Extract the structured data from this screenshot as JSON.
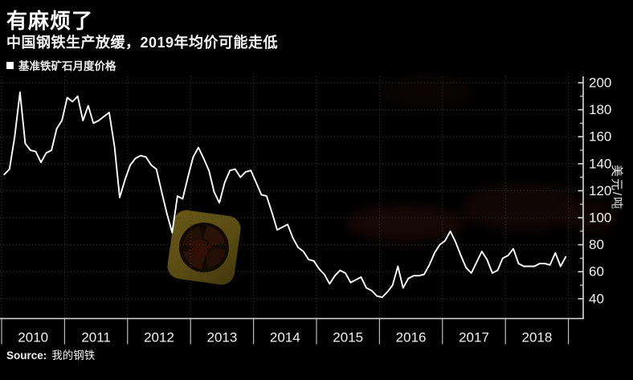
{
  "header": {
    "title": "有麻烦了",
    "subtitle": "中国钢铁生产放缓，2019年均价可能走低"
  },
  "legend": {
    "label": "基准铁矿石月度价格"
  },
  "source": {
    "prefix": "Source:",
    "name": "我的钢铁"
  },
  "colors": {
    "background": "#000000",
    "line": "#ffffff",
    "grid": "#3c3c3c",
    "axis": "#d9d9d9",
    "text": "#f2f2f2",
    "watermark_gold": "#6b5a16",
    "watermark_emblem": "#2e1409"
  },
  "chart_data": {
    "type": "line",
    "title": "有麻烦了",
    "subtitle": "中国钢铁生产放缓，2019年均价可能走低",
    "series_name": "基准铁矿石月度价格",
    "ylabel": "美元/吨",
    "xlabel": "",
    "grid": true,
    "legend_position": "top-left",
    "ylim": [
      40,
      200
    ],
    "y_ticks": [
      200,
      180,
      160,
      140,
      120,
      100,
      80,
      60,
      40
    ],
    "y_minor_step": 10,
    "x_tick_labels": [
      "2010",
      "2011",
      "2012",
      "2013",
      "2014",
      "2015",
      "2016",
      "2017",
      "2018"
    ],
    "start_year": 2010,
    "frequency": "monthly",
    "series": [
      {
        "name": "基准铁矿石月度价格",
        "values": [
          132,
          136,
          160,
          193,
          155,
          150,
          149,
          141,
          148,
          150,
          166,
          172,
          189,
          186,
          190,
          172,
          183,
          170,
          172,
          175,
          178,
          153,
          115,
          128,
          139,
          144,
          146,
          145,
          139,
          136,
          119,
          103,
          89,
          116,
          114,
          130,
          145,
          152,
          144,
          135,
          119,
          111,
          126,
          135,
          136,
          130,
          134,
          135,
          126,
          117,
          116,
          104,
          91,
          93,
          95,
          85,
          78,
          75,
          69,
          68,
          62,
          58,
          51,
          57,
          61,
          59,
          52,
          54,
          56,
          48,
          46,
          42,
          41,
          45,
          50,
          64,
          48,
          55,
          57,
          57,
          58,
          65,
          74,
          80,
          83,
          90,
          82,
          72,
          63,
          59,
          67,
          75,
          69,
          59,
          61,
          70,
          72,
          77,
          66,
          64,
          64,
          64,
          66,
          66,
          65,
          74,
          64,
          71
        ]
      }
    ]
  }
}
